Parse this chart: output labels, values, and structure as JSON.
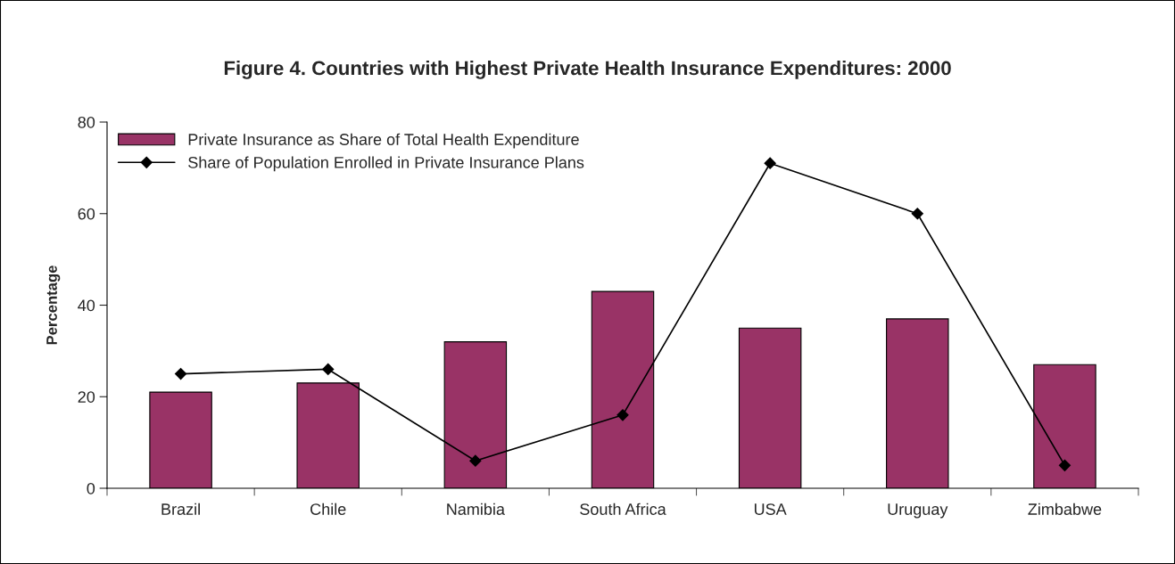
{
  "chart_data": {
    "type": "bar",
    "title": "Figure 4. Countries with Highest Private Health Insurance Expenditures: 2000",
    "ylabel": "Percentage",
    "categories": [
      "Brazil",
      "Chile",
      "Namibia",
      "South Africa",
      "USA",
      "Uruguay",
      "Zimbabwe"
    ],
    "series": [
      {
        "name": "Private Insurance as Share of Total Health Expenditure",
        "color": "#993366",
        "values": [
          21,
          23,
          32,
          43,
          35,
          37,
          27
        ]
      },
      {
        "name": "Share of Population Enrolled in Private Insurance Plans",
        "type": "line",
        "color": "#000000",
        "marker": "diamond",
        "values": [
          25,
          26,
          6,
          16,
          71,
          60,
          5
        ]
      }
    ],
    "ylim": [
      0,
      80
    ],
    "yticks": [
      0,
      20,
      40,
      60,
      80
    ],
    "grid": false,
    "legend": "top left"
  }
}
